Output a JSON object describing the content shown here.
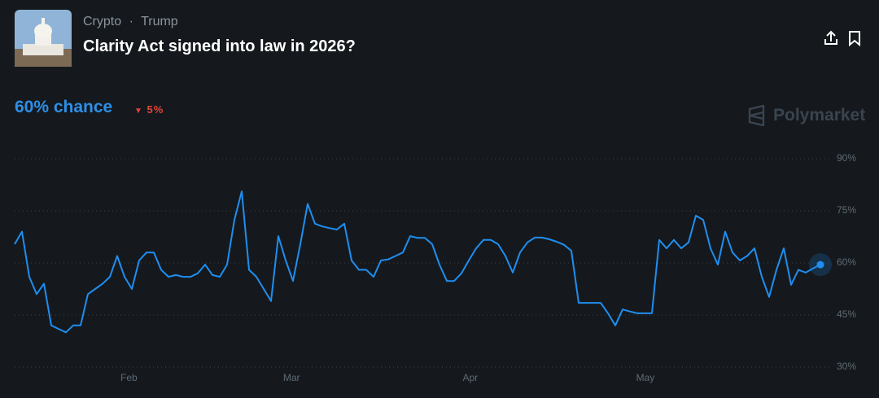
{
  "header": {
    "category": "Crypto",
    "separator": "·",
    "tag": "Trump",
    "title": "Clarity Act signed into law in 2026?"
  },
  "summary": {
    "chance": "60% chance",
    "change": "5%"
  },
  "brand": "Polymarket",
  "chart_data": {
    "type": "line",
    "color": "#1f8ef0",
    "grid": true,
    "x": [
      0,
      1,
      2,
      3,
      4,
      5,
      6,
      7,
      8,
      9,
      10,
      11,
      12,
      13,
      14,
      15,
      16,
      17,
      18,
      19,
      20,
      21,
      22,
      23,
      24,
      25,
      26,
      27,
      28,
      29,
      30,
      31,
      32,
      33,
      34,
      35,
      36,
      37,
      38,
      39,
      40,
      41,
      42,
      43,
      44,
      45,
      46,
      47,
      48,
      49,
      50,
      51,
      52,
      53,
      54,
      55,
      56,
      57,
      58,
      59,
      60,
      61,
      62,
      63,
      64,
      65,
      66,
      67,
      68,
      69,
      70,
      71,
      72,
      73,
      74,
      75,
      76,
      77,
      78,
      79,
      80,
      81,
      82,
      83,
      84,
      85,
      86,
      87,
      88,
      89,
      90,
      91,
      92,
      93,
      94,
      95,
      96,
      97,
      98,
      99,
      100,
      101,
      102,
      103,
      104,
      105,
      106,
      107,
      108,
      109,
      110
    ],
    "values": [
      65.4,
      69,
      56,
      51,
      54,
      42,
      41,
      40,
      42,
      42,
      51,
      52.5,
      54,
      56,
      62,
      56,
      52.5,
      60.7,
      63,
      63,
      58,
      56,
      56.5,
      56,
      56,
      57,
      59.5,
      56.5,
      56,
      59.5,
      72.4,
      80.6,
      58,
      56,
      52.5,
      49,
      67.7,
      60.7,
      54.8,
      65.4,
      77,
      71.3,
      70.5,
      70,
      69.6,
      71.3,
      60.7,
      58,
      58,
      56,
      60.7,
      61,
      62,
      63,
      67.7,
      67.2,
      67.2,
      65.4,
      59.5,
      54.8,
      54.8,
      57,
      60.7,
      64.2,
      66.6,
      66.6,
      65.4,
      62,
      57.2,
      63,
      65.9,
      67.3,
      67.3,
      66.8,
      66.1,
      65.2,
      63.5,
      48.5,
      48.5,
      48.5,
      48.5,
      45.5,
      42,
      46.6,
      46,
      45.5,
      45.5,
      45.5,
      66.6,
      64.2,
      66.6,
      64.2,
      65.9,
      73.6,
      72.4,
      64.2,
      59.5,
      69,
      63,
      60.7,
      62,
      64.2,
      56,
      50.2,
      58,
      64.2,
      53.7,
      58,
      57.2,
      58.4,
      59.5
    ],
    "xlim": [
      0,
      110
    ],
    "xticks": [
      {
        "value": 15.6,
        "label": "Feb"
      },
      {
        "value": 37.8,
        "label": "Mar"
      },
      {
        "value": 62.2,
        "label": "Apr"
      },
      {
        "value": 86.1,
        "label": "May"
      }
    ],
    "ylim": [
      30,
      90
    ],
    "yticks": [
      {
        "value": 30,
        "label": "30%"
      },
      {
        "value": 45,
        "label": "45%"
      },
      {
        "value": 60,
        "label": "60%"
      },
      {
        "value": 75,
        "label": "75%"
      },
      {
        "value": 90,
        "label": "90%"
      }
    ]
  }
}
